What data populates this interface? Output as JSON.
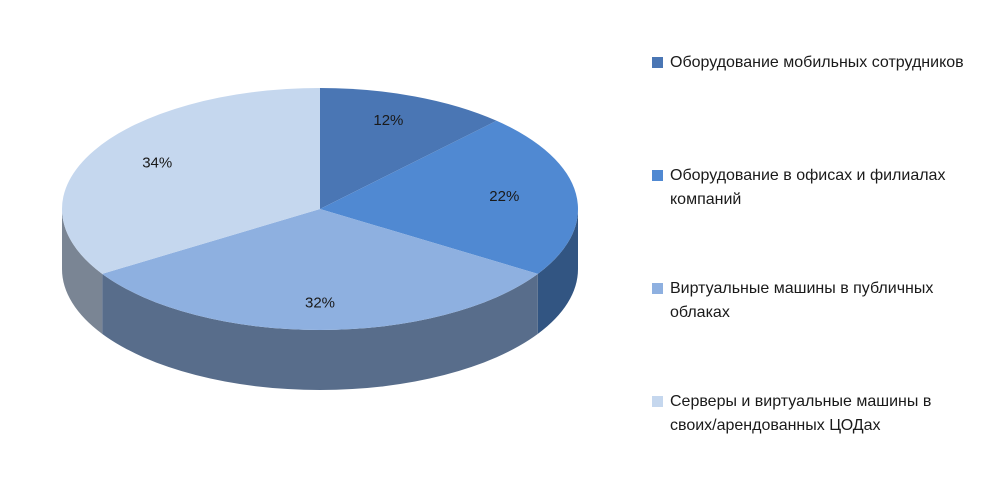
{
  "chart_data": {
    "type": "pie",
    "categories": [
      "Оборудование мобильных сотрудников",
      "Оборудование в офисах и филиалах компаний",
      "Виртуальные машины в публичных облаках",
      "Серверы и виртуальные машины в своих/арендованных ЦОДах"
    ],
    "values": [
      12,
      22,
      32,
      34
    ],
    "value_labels": [
      "12%",
      "22%",
      "32%",
      "34%"
    ],
    "colors": [
      "#4a76b4",
      "#5089d2",
      "#8eb0e0",
      "#c5d7ee"
    ],
    "legend": "right"
  }
}
